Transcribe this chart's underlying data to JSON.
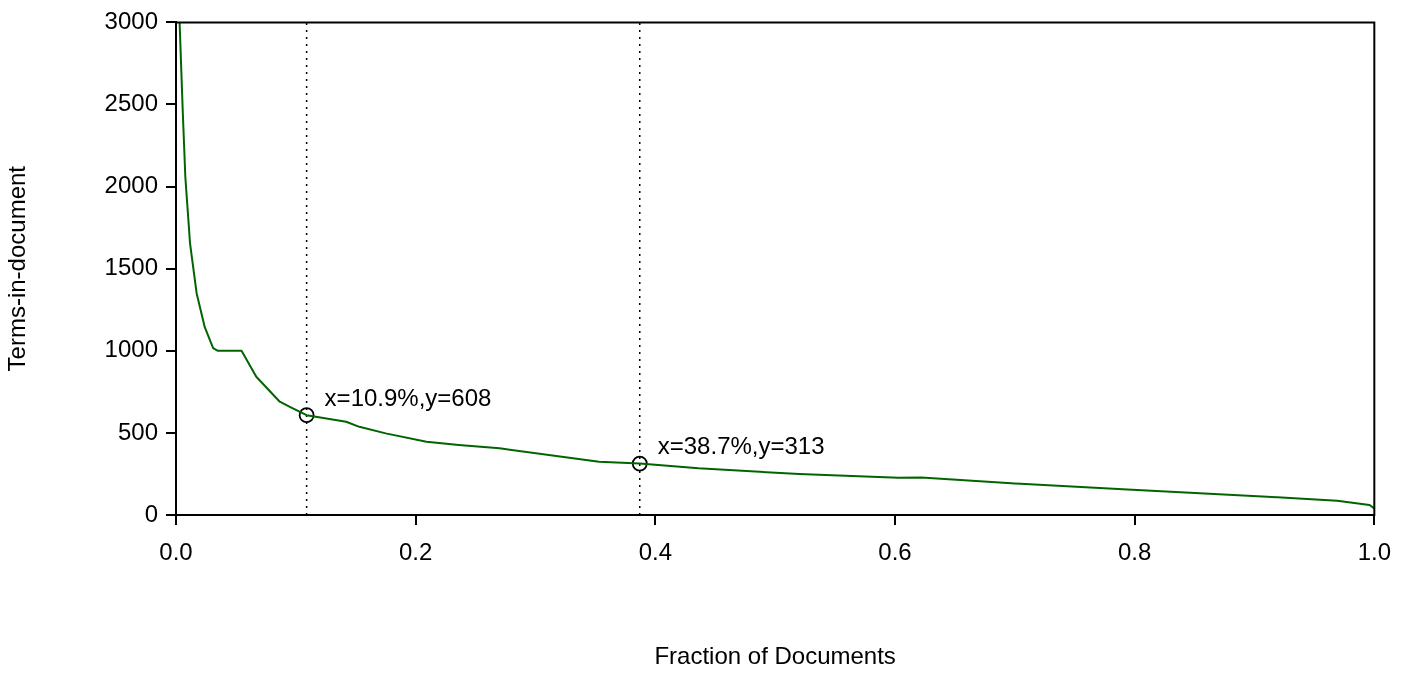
{
  "chart_data": {
    "type": "line",
    "xlabel": "Fraction of Documents",
    "ylabel": "Terms-in-document",
    "xlim": [
      0,
      1
    ],
    "ylim": [
      0,
      3000
    ],
    "xticks": [
      {
        "value": 0,
        "label": "0.0"
      },
      {
        "value": 0.2,
        "label": "0.2"
      },
      {
        "value": 0.4,
        "label": "0.4"
      },
      {
        "value": 0.6,
        "label": "0.6"
      },
      {
        "value": 0.8,
        "label": "0.8"
      },
      {
        "value": 1,
        "label": "1.0"
      }
    ],
    "yticks": [
      0,
      500,
      1000,
      1500,
      2000,
      2500,
      3000
    ],
    "series": [
      {
        "color": "#006400",
        "marker": "none",
        "line_style": "solid",
        "x": [
          0.003,
          0.0056,
          0.0078,
          0.0117,
          0.0172,
          0.024,
          0.031,
          0.035,
          0.0547,
          0.067,
          0.0866,
          0.095,
          0.109,
          0.142,
          0.153,
          0.175,
          0.209,
          0.236,
          0.27,
          0.353,
          0.387,
          0.436,
          0.52,
          0.603,
          0.622,
          0.697,
          0.794,
          0.919,
          0.969,
          0.996,
          1.0
        ],
        "values": [
          3000,
          2465,
          2057,
          1655,
          1351,
          1144,
          1016,
          1000,
          1000,
          842,
          690,
          659,
          608,
          568,
          537,
          497,
          446,
          426,
          406,
          324,
          313,
          284,
          250,
          227,
          229,
          193,
          156,
          108,
          87,
          61,
          40
        ]
      },
      {
        "type": "scatter",
        "color": "#000000",
        "marker": "circle",
        "x": [
          0.109,
          0.387
        ],
        "values": [
          608,
          313
        ]
      }
    ],
    "ref_lines": [
      {
        "axis": "x",
        "value": 0.109,
        "line_style": "dotted",
        "color": "#000000"
      },
      {
        "axis": "x",
        "value": 0.387,
        "line_style": "dotted",
        "color": "#000000"
      }
    ],
    "annotations": [
      {
        "text": "x=10.9%,y=608",
        "x": 0.109,
        "y": 608
      },
      {
        "text": "x=38.7%,y=313",
        "x": 0.387,
        "y": 313
      }
    ]
  }
}
